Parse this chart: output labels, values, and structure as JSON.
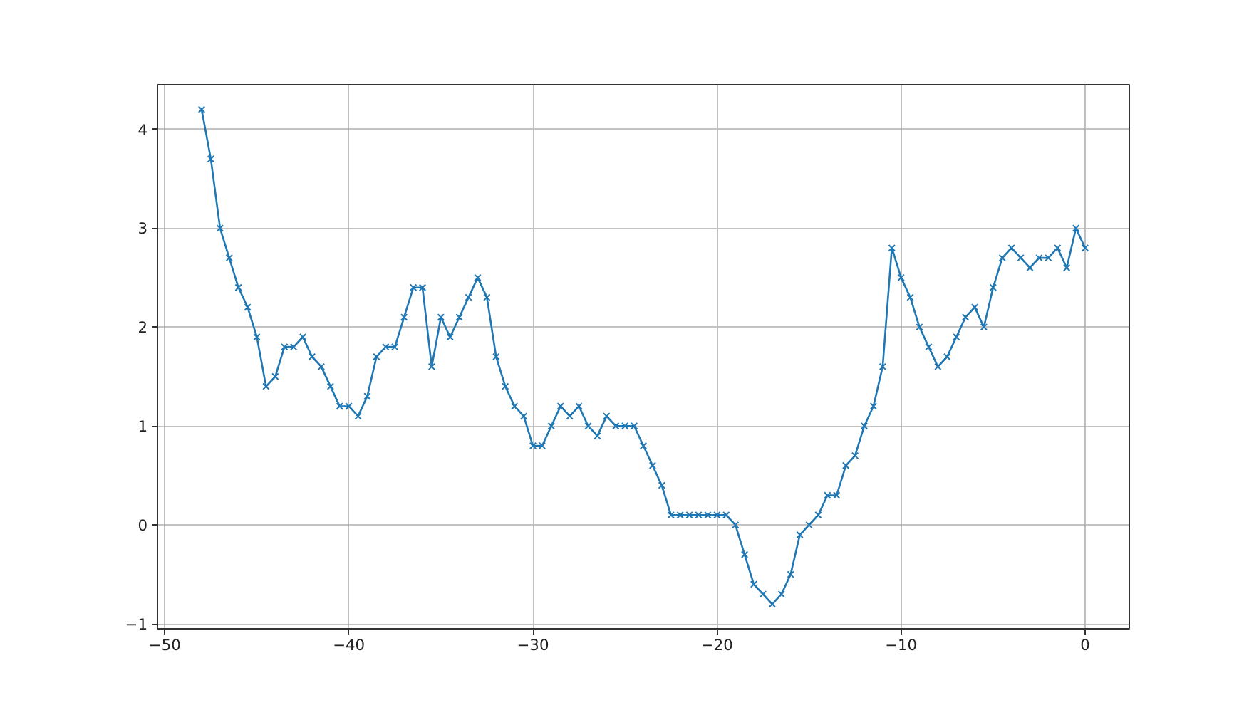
{
  "chart_data": {
    "type": "line",
    "x": [
      -48,
      -47.5,
      -47,
      -46.5,
      -46,
      -45.5,
      -45,
      -44.5,
      -44,
      -43.5,
      -43,
      -42.5,
      -42,
      -41.5,
      -41,
      -40.5,
      -40,
      -39.5,
      -39,
      -38.5,
      -38,
      -37.5,
      -37,
      -36.5,
      -36,
      -35.5,
      -35,
      -34.5,
      -34,
      -33.5,
      -33,
      -32.5,
      -32,
      -31.5,
      -31,
      -30.5,
      -30,
      -29.5,
      -29,
      -28.5,
      -28,
      -27.5,
      -27,
      -26.5,
      -26,
      -25.5,
      -25,
      -24.5,
      -24,
      -23.5,
      -23,
      -22.5,
      -22,
      -21.5,
      -21,
      -20.5,
      -20,
      -19.5,
      -19,
      -18.5,
      -18,
      -17.5,
      -17,
      -16.5,
      -16,
      -15.5,
      -15,
      -14.5,
      -14,
      -13.5,
      -13,
      -12.5,
      -12,
      -11.5,
      -11,
      -10.5,
      -10,
      -9.5,
      -9,
      -8.5,
      -8,
      -7.5,
      -7,
      -6.5,
      -6,
      -5.5,
      -5,
      -4.5,
      -4,
      -3.5,
      -3,
      -2.5,
      -2,
      -1.5,
      -1,
      -0.5,
      0
    ],
    "series": [
      {
        "color": "#1f77b4",
        "values": [
          4.2,
          3.7,
          3.0,
          2.7,
          2.4,
          2.2,
          1.9,
          1.4,
          1.5,
          1.8,
          1.8,
          1.9,
          1.7,
          1.6,
          1.4,
          1.2,
          1.2,
          1.1,
          1.3,
          1.7,
          1.8,
          1.8,
          2.1,
          2.4,
          2.4,
          1.6,
          2.1,
          1.9,
          2.1,
          2.3,
          2.5,
          2.3,
          1.7,
          1.4,
          1.2,
          1.1,
          0.8,
          0.8,
          1.0,
          1.2,
          1.1,
          1.2,
          1.0,
          0.9,
          1.1,
          1.0,
          1.0,
          1.0,
          0.8,
          0.6,
          0.4,
          0.1,
          0.1,
          0.1,
          0.1,
          0.1,
          0.1,
          0.1,
          0.0,
          -0.3,
          -0.6,
          -0.7,
          -0.8,
          -0.7,
          -0.5,
          -0.1,
          0.0,
          0.1,
          0.3,
          0.3,
          0.6,
          0.7,
          1.0,
          1.2,
          1.6,
          2.8,
          2.5,
          2.3,
          2.0,
          1.8,
          1.6,
          1.7,
          1.9,
          2.1,
          2.2,
          2.0,
          2.4,
          2.7,
          2.8,
          2.7,
          2.6,
          2.7,
          2.7,
          2.8,
          2.6,
          3.0,
          2.8
        ]
      }
    ],
    "xlim": [
      -50.4,
      2.4
    ],
    "ylim": [
      -1.05,
      4.45
    ],
    "xticks": [
      -50,
      -40,
      -30,
      -20,
      -10,
      0
    ],
    "yticks": [
      -1,
      0,
      1,
      2,
      3,
      4
    ],
    "grid": true,
    "marker": "cross",
    "line_style": "solid"
  }
}
